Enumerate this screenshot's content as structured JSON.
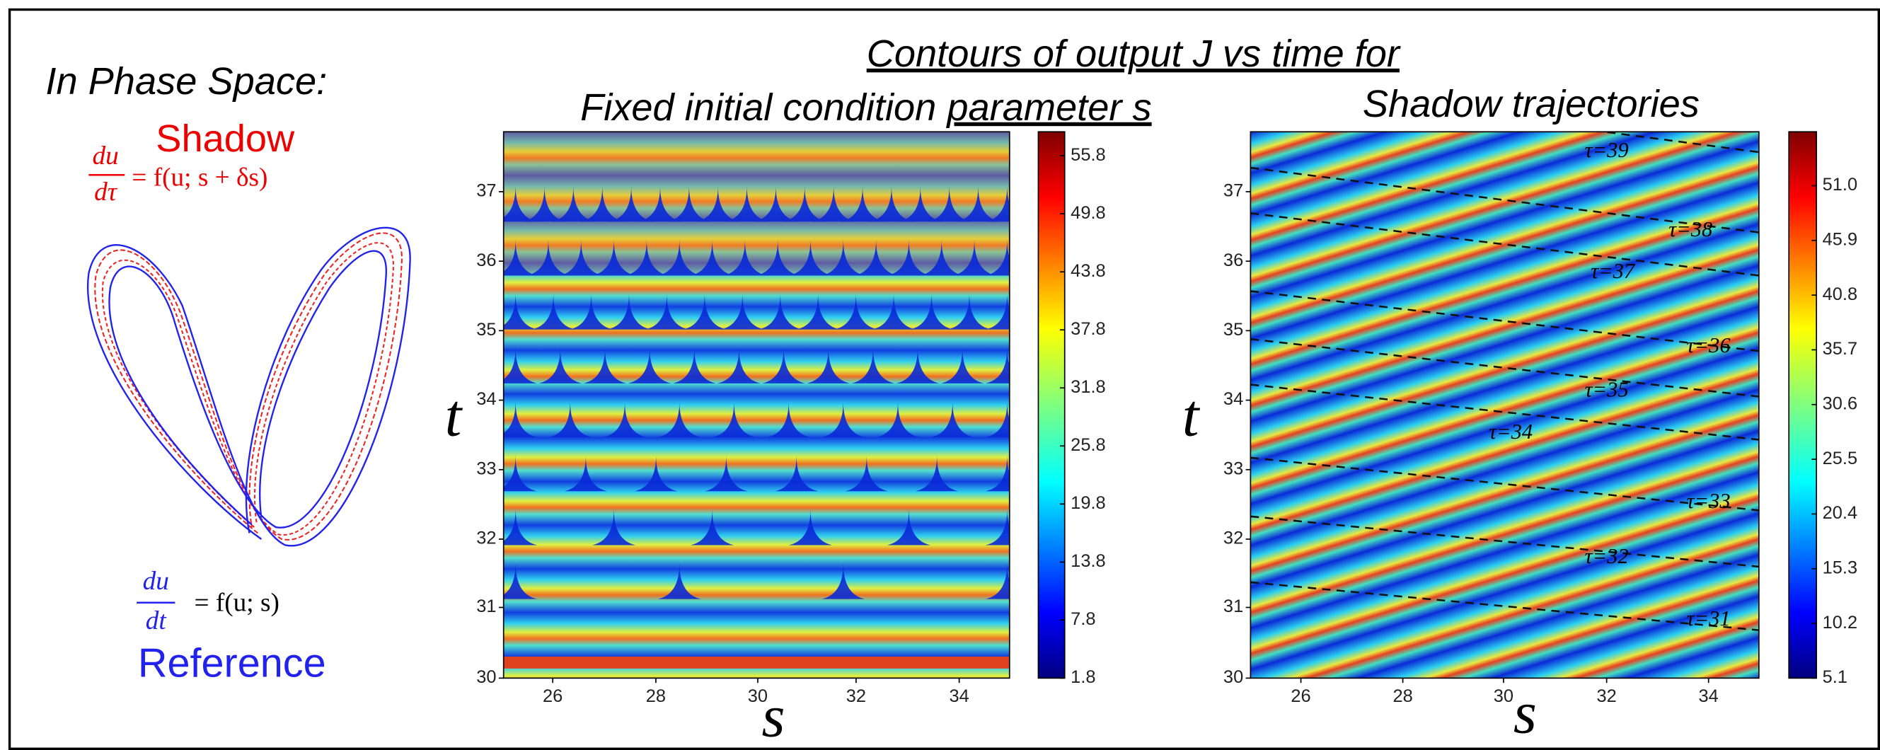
{
  "intro": {
    "heading": "In Phase Space:",
    "shadow_label": "Shadow",
    "shadow_eq": {
      "num": "du",
      "den": "dτ",
      "rhs": "= f(u; s + δs)"
    },
    "reference_eq": {
      "num": "du",
      "den": "dt",
      "rhs": "= f(u; s)"
    },
    "reference_label": "Reference"
  },
  "title": "Contours of output J vs time for",
  "panels": [
    {
      "title_prefix": "Fixed initial condition ",
      "title_underlined": "parameter s",
      "x_label": "s",
      "y_label": "t",
      "xticks": [
        "26",
        "28",
        "30",
        "32",
        "34"
      ],
      "yticks": [
        "30",
        "31",
        "32",
        "33",
        "34",
        "35",
        "36",
        "37"
      ],
      "colorbar_ticks": [
        "55.8",
        "49.8",
        "43.8",
        "37.8",
        "31.8",
        "25.8",
        "19.8",
        "13.8",
        "7.8",
        "1.8"
      ]
    },
    {
      "title": "Shadow trajectories",
      "x_label": "s",
      "y_label": "t",
      "xticks": [
        "26",
        "28",
        "30",
        "32",
        "34"
      ],
      "yticks": [
        "30",
        "31",
        "32",
        "33",
        "34",
        "35",
        "36",
        "37"
      ],
      "colorbar_ticks": [
        "51.0",
        "45.9",
        "40.8",
        "35.7",
        "30.6",
        "25.5",
        "20.4",
        "15.3",
        "10.2",
        "5.1"
      ],
      "trajectory_labels": [
        "τ=39",
        "τ=38",
        "τ=37",
        "τ=36",
        "τ=35",
        "τ=34",
        "τ=33",
        "τ=32",
        "τ=31"
      ]
    }
  ]
}
